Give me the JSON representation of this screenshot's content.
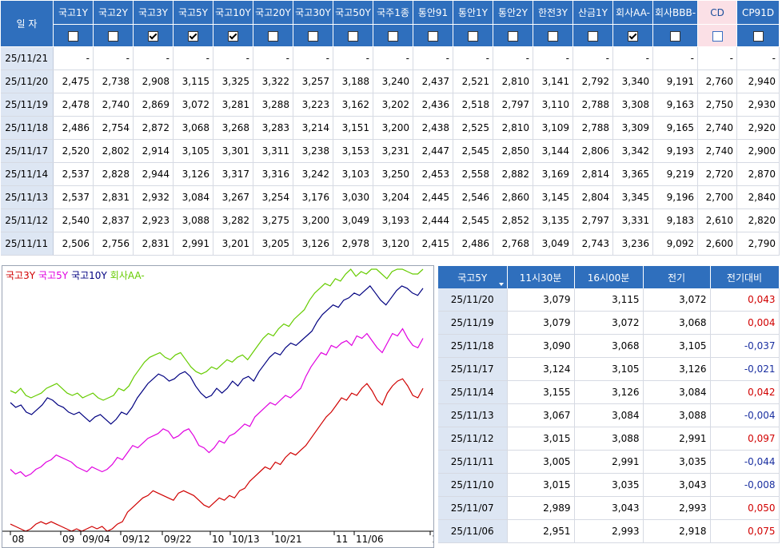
{
  "top_table": {
    "date_header": "일 자",
    "columns": [
      {
        "label": "국고1Y",
        "checked": false
      },
      {
        "label": "국고2Y",
        "checked": false
      },
      {
        "label": "국고3Y",
        "checked": true
      },
      {
        "label": "국고5Y",
        "checked": true
      },
      {
        "label": "국고10Y",
        "checked": true
      },
      {
        "label": "국고20Y",
        "checked": false
      },
      {
        "label": "국고30Y",
        "checked": false
      },
      {
        "label": "국고50Y",
        "checked": false
      },
      {
        "label": "국주1종",
        "checked": false
      },
      {
        "label": "통안91",
        "checked": false
      },
      {
        "label": "통안1Y",
        "checked": false
      },
      {
        "label": "통안2Y",
        "checked": false
      },
      {
        "label": "한전3Y",
        "checked": false
      },
      {
        "label": "산금1Y",
        "checked": false
      },
      {
        "label": "회사AA-",
        "checked": true
      },
      {
        "label": "회사BBB-",
        "checked": false
      },
      {
        "label": "CD",
        "checked": false
      },
      {
        "label": "CP91D",
        "checked": false
      }
    ],
    "rows": [
      {
        "date": "25/11/21",
        "values": [
          "-",
          "-",
          "-",
          "-",
          "-",
          "-",
          "-",
          "-",
          "-",
          "-",
          "-",
          "-",
          "-",
          "-",
          "-",
          "-",
          "-",
          "-"
        ]
      },
      {
        "date": "25/11/20",
        "values": [
          "2,475",
          "2,738",
          "2,908",
          "3,115",
          "3,325",
          "3,322",
          "3,257",
          "3,188",
          "3,240",
          "2,437",
          "2,521",
          "2,810",
          "3,141",
          "2,792",
          "3,340",
          "9,191",
          "2,760",
          "2,940"
        ]
      },
      {
        "date": "25/11/19",
        "values": [
          "2,478",
          "2,740",
          "2,869",
          "3,072",
          "3,281",
          "3,288",
          "3,223",
          "3,162",
          "3,202",
          "2,436",
          "2,518",
          "2,797",
          "3,110",
          "2,788",
          "3,308",
          "9,163",
          "2,750",
          "2,930"
        ]
      },
      {
        "date": "25/11/18",
        "values": [
          "2,486",
          "2,754",
          "2,872",
          "3,068",
          "3,268",
          "3,283",
          "3,214",
          "3,151",
          "3,200",
          "2,438",
          "2,525",
          "2,810",
          "3,109",
          "2,788",
          "3,309",
          "9,165",
          "2,740",
          "2,920"
        ]
      },
      {
        "date": "25/11/17",
        "values": [
          "2,520",
          "2,802",
          "2,914",
          "3,105",
          "3,301",
          "3,311",
          "3,238",
          "3,153",
          "3,231",
          "2,447",
          "2,545",
          "2,850",
          "3,144",
          "2,806",
          "3,342",
          "9,193",
          "2,740",
          "2,900"
        ]
      },
      {
        "date": "25/11/14",
        "values": [
          "2,537",
          "2,828",
          "2,944",
          "3,126",
          "3,317",
          "3,316",
          "3,242",
          "3,103",
          "3,250",
          "2,453",
          "2,558",
          "2,882",
          "3,169",
          "2,814",
          "3,365",
          "9,219",
          "2,720",
          "2,870"
        ]
      },
      {
        "date": "25/11/13",
        "values": [
          "2,537",
          "2,831",
          "2,932",
          "3,084",
          "3,267",
          "3,254",
          "3,176",
          "3,030",
          "3,204",
          "2,445",
          "2,546",
          "2,860",
          "3,145",
          "2,804",
          "3,345",
          "9,196",
          "2,700",
          "2,840"
        ]
      },
      {
        "date": "25/11/12",
        "values": [
          "2,540",
          "2,837",
          "2,923",
          "3,088",
          "3,282",
          "3,275",
          "3,200",
          "3,049",
          "3,193",
          "2,444",
          "2,545",
          "2,852",
          "3,135",
          "2,797",
          "3,331",
          "9,183",
          "2,610",
          "2,820"
        ]
      },
      {
        "date": "25/11/11",
        "values": [
          "2,506",
          "2,756",
          "2,831",
          "2,991",
          "3,201",
          "3,205",
          "3,126",
          "2,978",
          "3,120",
          "2,415",
          "2,486",
          "2,768",
          "3,049",
          "2,743",
          "3,236",
          "9,092",
          "2,600",
          "2,790"
        ]
      }
    ]
  },
  "right_table": {
    "headers": [
      "국고5Y",
      "11시30분",
      "16시00분",
      "전기",
      "전기대비"
    ],
    "rows": [
      {
        "date": "25/11/20",
        "a": "3,079",
        "b": "3,115",
        "prev": "3,072",
        "diff": "0,043"
      },
      {
        "date": "25/11/19",
        "a": "3,079",
        "b": "3,072",
        "prev": "3,068",
        "diff": "0,004"
      },
      {
        "date": "25/11/18",
        "a": "3,090",
        "b": "3,068",
        "prev": "3,105",
        "diff": "-0,037"
      },
      {
        "date": "25/11/17",
        "a": "3,124",
        "b": "3,105",
        "prev": "3,126",
        "diff": "-0,021"
      },
      {
        "date": "25/11/14",
        "a": "3,155",
        "b": "3,126",
        "prev": "3,084",
        "diff": "0,042"
      },
      {
        "date": "25/11/13",
        "a": "3,067",
        "b": "3,084",
        "prev": "3,088",
        "diff": "-0,004"
      },
      {
        "date": "25/11/12",
        "a": "3,015",
        "b": "3,088",
        "prev": "2,991",
        "diff": "0,097"
      },
      {
        "date": "25/11/11",
        "a": "3,005",
        "b": "2,991",
        "prev": "3,035",
        "diff": "-0,044"
      },
      {
        "date": "25/11/10",
        "a": "3,015",
        "b": "3,035",
        "prev": "3,043",
        "diff": "-0,008"
      },
      {
        "date": "25/11/07",
        "a": "2,989",
        "b": "3,043",
        "prev": "2,993",
        "diff": "0,050"
      },
      {
        "date": "25/11/06",
        "a": "2,951",
        "b": "2,993",
        "prev": "2,918",
        "diff": "0,075"
      }
    ]
  },
  "chart_data": {
    "type": "line",
    "title": "",
    "xlabel": "",
    "ylabel": "",
    "ylim": [
      2.3,
      3.4
    ],
    "x_ticks": [
      "08",
      "09",
      "09/04",
      "09/12",
      "09/22",
      "10",
      "10/13",
      "10/21",
      "11",
      "11/06",
      "1"
    ],
    "legend_position": "top-left",
    "grid": false,
    "series": [
      {
        "name": "국고3Y",
        "color": "#d00000",
        "values": [
          2.33,
          2.32,
          2.31,
          2.3,
          2.31,
          2.33,
          2.34,
          2.33,
          2.34,
          2.33,
          2.32,
          2.31,
          2.3,
          2.31,
          2.3,
          2.31,
          2.32,
          2.31,
          2.32,
          2.3,
          2.31,
          2.33,
          2.34,
          2.38,
          2.4,
          2.42,
          2.44,
          2.45,
          2.47,
          2.46,
          2.45,
          2.44,
          2.43,
          2.46,
          2.47,
          2.46,
          2.45,
          2.43,
          2.41,
          2.4,
          2.42,
          2.44,
          2.43,
          2.45,
          2.44,
          2.47,
          2.48,
          2.51,
          2.53,
          2.55,
          2.57,
          2.56,
          2.59,
          2.58,
          2.61,
          2.63,
          2.62,
          2.64,
          2.66,
          2.69,
          2.72,
          2.75,
          2.78,
          2.8,
          2.83,
          2.86,
          2.85,
          2.88,
          2.87,
          2.9,
          2.92,
          2.89,
          2.85,
          2.83,
          2.88,
          2.91,
          2.93,
          2.94,
          2.91,
          2.87,
          2.86,
          2.9
        ]
      },
      {
        "name": "국고5Y",
        "color": "#e000e0",
        "values": [
          2.56,
          2.54,
          2.55,
          2.53,
          2.54,
          2.56,
          2.57,
          2.59,
          2.6,
          2.62,
          2.61,
          2.6,
          2.59,
          2.57,
          2.56,
          2.55,
          2.57,
          2.56,
          2.55,
          2.56,
          2.58,
          2.61,
          2.6,
          2.63,
          2.66,
          2.65,
          2.67,
          2.69,
          2.7,
          2.71,
          2.73,
          2.72,
          2.69,
          2.7,
          2.72,
          2.73,
          2.7,
          2.66,
          2.65,
          2.63,
          2.65,
          2.68,
          2.67,
          2.7,
          2.71,
          2.73,
          2.75,
          2.74,
          2.78,
          2.8,
          2.82,
          2.84,
          2.83,
          2.85,
          2.87,
          2.86,
          2.88,
          2.9,
          2.95,
          2.99,
          3.02,
          3.05,
          3.04,
          3.08,
          3.07,
          3.09,
          3.1,
          3.08,
          3.12,
          3.11,
          3.13,
          3.1,
          3.07,
          3.05,
          3.09,
          3.13,
          3.12,
          3.15,
          3.11,
          3.08,
          3.07,
          3.11
        ]
      },
      {
        "name": "국고10Y",
        "color": "#000080",
        "values": [
          2.84,
          2.82,
          2.83,
          2.8,
          2.79,
          2.81,
          2.83,
          2.86,
          2.85,
          2.83,
          2.82,
          2.8,
          2.79,
          2.8,
          2.78,
          2.76,
          2.78,
          2.79,
          2.77,
          2.75,
          2.77,
          2.8,
          2.79,
          2.82,
          2.86,
          2.89,
          2.92,
          2.94,
          2.96,
          2.95,
          2.93,
          2.94,
          2.96,
          2.97,
          2.95,
          2.91,
          2.88,
          2.86,
          2.87,
          2.9,
          2.88,
          2.9,
          2.93,
          2.91,
          2.94,
          2.95,
          2.93,
          2.97,
          3.0,
          3.03,
          3.05,
          3.04,
          3.07,
          3.09,
          3.08,
          3.1,
          3.12,
          3.14,
          3.18,
          3.21,
          3.23,
          3.25,
          3.24,
          3.27,
          3.28,
          3.3,
          3.29,
          3.31,
          3.33,
          3.3,
          3.27,
          3.25,
          3.28,
          3.31,
          3.33,
          3.32,
          3.3,
          3.29,
          3.32
        ]
      },
      {
        "name": "회사AA-",
        "color": "#66cc00",
        "values": [
          2.89,
          2.88,
          2.9,
          2.87,
          2.86,
          2.87,
          2.88,
          2.9,
          2.91,
          2.92,
          2.9,
          2.88,
          2.87,
          2.88,
          2.86,
          2.87,
          2.88,
          2.86,
          2.85,
          2.86,
          2.87,
          2.9,
          2.89,
          2.91,
          2.95,
          2.98,
          3.01,
          3.03,
          3.04,
          3.05,
          3.03,
          3.02,
          3.04,
          3.05,
          3.02,
          2.99,
          2.97,
          2.96,
          2.97,
          2.99,
          2.98,
          3.0,
          3.02,
          3.01,
          3.03,
          3.04,
          3.02,
          3.05,
          3.08,
          3.11,
          3.13,
          3.12,
          3.15,
          3.17,
          3.16,
          3.19,
          3.21,
          3.23,
          3.27,
          3.3,
          3.32,
          3.34,
          3.33,
          3.36,
          3.35,
          3.38,
          3.4,
          3.37,
          3.39,
          3.38,
          3.4,
          3.4,
          3.38,
          3.36,
          3.39,
          3.4,
          3.4,
          3.39,
          3.38,
          3.38,
          3.4
        ]
      }
    ]
  }
}
